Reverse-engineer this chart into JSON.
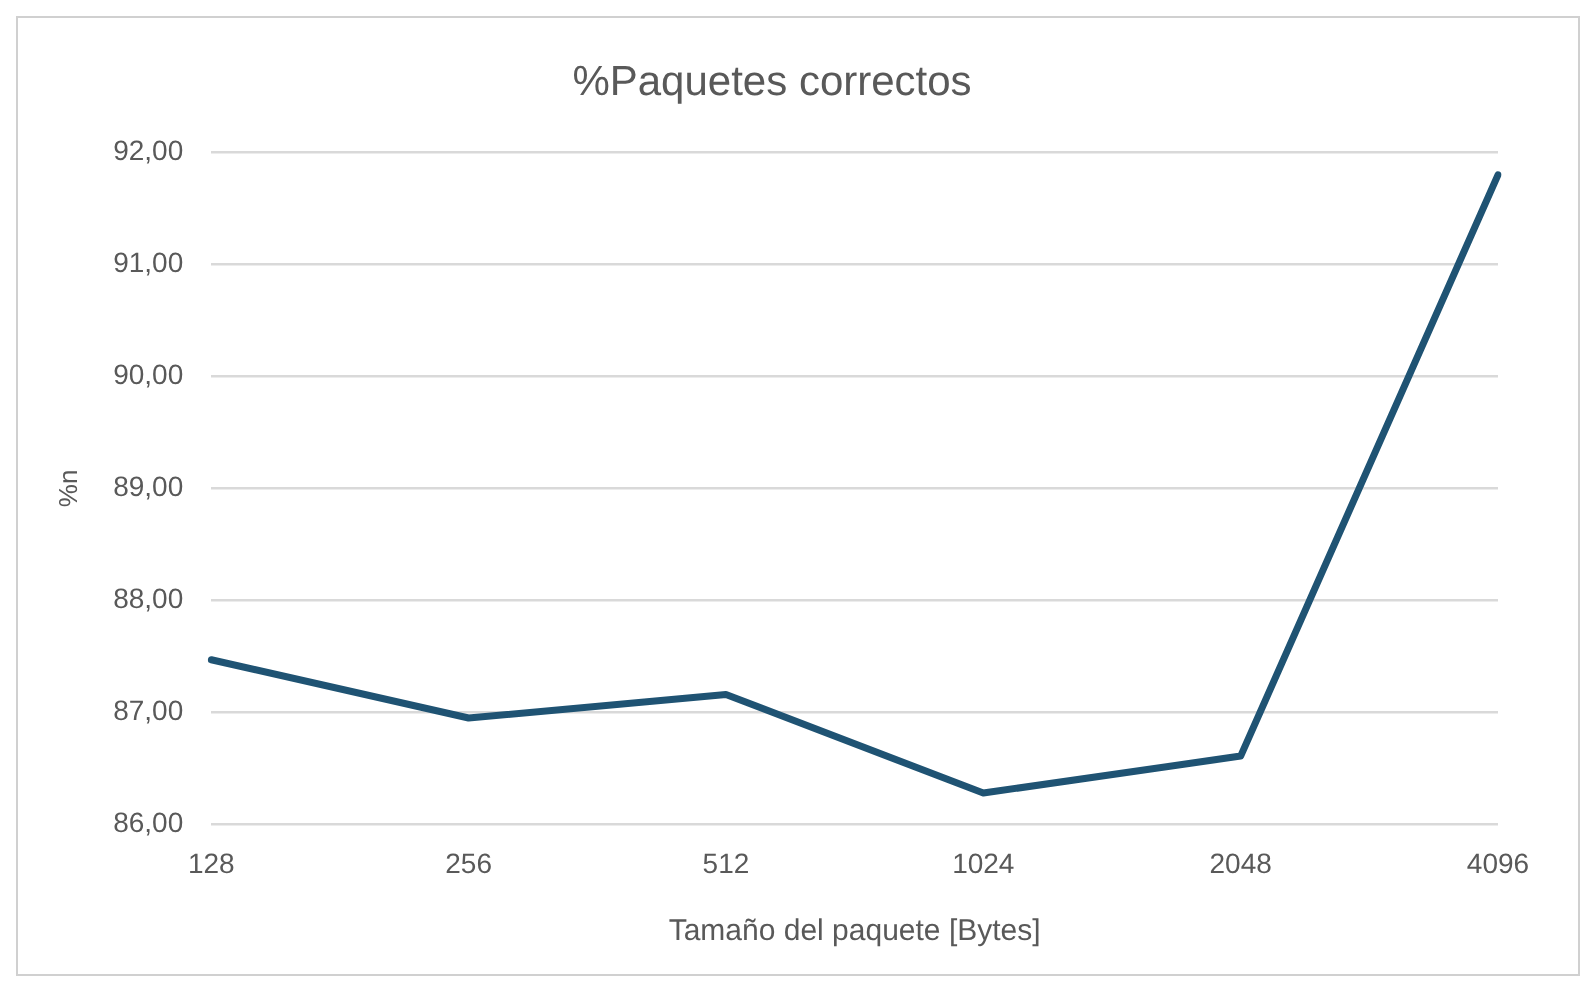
{
  "chart_data": {
    "type": "line",
    "title": "%Paquetes correctos",
    "xlabel": "Tamaño del paquete [Bytes]",
    "ylabel": "%n",
    "categories": [
      "128",
      "256",
      "512",
      "1024",
      "2048",
      "4096"
    ],
    "series": [
      {
        "color": "#1f5373",
        "values": [
          87.47,
          86.95,
          87.16,
          86.28,
          86.61,
          91.8
        ]
      }
    ],
    "ylim": [
      86,
      92
    ],
    "yticks": [
      {
        "value": 86,
        "label": "86,00"
      },
      {
        "value": 87,
        "label": "87,00"
      },
      {
        "value": 88,
        "label": "88,00"
      },
      {
        "value": 89,
        "label": "89,00"
      },
      {
        "value": 90,
        "label": "90,00"
      },
      {
        "value": 91,
        "label": "91,00"
      },
      {
        "value": 92,
        "label": "92,00"
      }
    ],
    "grid": "y",
    "legend": false,
    "marker": "none",
    "line_style": "solid"
  }
}
